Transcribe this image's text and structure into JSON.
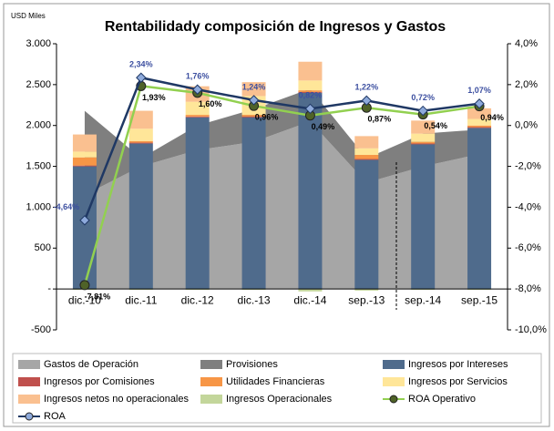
{
  "chart_data": {
    "type": "combo",
    "title": "Rentabilidady composición de Ingresos y Gastos",
    "y_label": "USD Miles",
    "categories": [
      "dic.-10",
      "dic.-11",
      "dic.-12",
      "dic.-13",
      "dic.-14",
      "sep.-13",
      "sep.-14",
      "sep.-15"
    ],
    "ylim": [
      -500,
      3000
    ],
    "yticks": [
      {
        "value": 3000,
        "label": "3.000"
      },
      {
        "value": 2500,
        "label": "2.500"
      },
      {
        "value": 2000,
        "label": "2.000"
      },
      {
        "value": 1500,
        "label": "1.500"
      },
      {
        "value": 1000,
        "label": "1.000"
      },
      500,
      {
        "value": 0,
        "label": "-"
      },
      -500
    ],
    "y2lim": [
      -10,
      4
    ],
    "y2ticks": [
      {
        "value": 4,
        "label": "4,0%"
      },
      {
        "value": 2,
        "label": "2,0%"
      },
      {
        "value": 0,
        "label": "0,0%"
      },
      {
        "value": -2,
        "label": "-2,0%"
      },
      {
        "value": -4,
        "label": "-4,0%"
      },
      {
        "value": -6,
        "label": "-6,0%"
      },
      {
        "value": -8,
        "label": "-8,0%"
      },
      {
        "value": -10,
        "label": "-10,0%"
      }
    ],
    "series": [
      {
        "name": "Gastos de Operación",
        "type": "area",
        "color": "#a6a6a6",
        "values": [
          1150,
          1500,
          1700,
          1800,
          2050,
          1300,
          1500,
          1650
        ]
      },
      {
        "name": "Provisiones",
        "type": "area",
        "color": "#7f7f7f",
        "values": [
          1030,
          100,
          300,
          400,
          400,
          300,
          400,
          300
        ]
      },
      {
        "name": "Ingresos por Intereses",
        "type": "bar",
        "color": "#4f6b8c",
        "values": [
          1500,
          1780,
          2100,
          2100,
          2400,
          1580,
          1770,
          1970
        ]
      },
      {
        "name": "Ingresos por Comisiones",
        "type": "bar",
        "color": "#c0504d",
        "values": [
          10,
          10,
          10,
          10,
          10,
          10,
          10,
          10
        ]
      },
      {
        "name": "Utilidades Financieras",
        "type": "bar",
        "color": "#f79646",
        "values": [
          100,
          20,
          20,
          20,
          20,
          50,
          20,
          20
        ]
      },
      {
        "name": "Ingresos por Servicios",
        "type": "bar",
        "color": "#ffe699",
        "values": [
          70,
          150,
          160,
          230,
          120,
          80,
          100,
          80
        ]
      },
      {
        "name": "Ingresos netos no operacionales",
        "type": "bar",
        "color": "#fac090",
        "values": [
          210,
          220,
          190,
          170,
          230,
          150,
          160,
          130
        ]
      },
      {
        "name": "Ingresos Operacionales",
        "type": "bar",
        "color": "#c3d69b",
        "values": [
          -10,
          -10,
          -10,
          -10,
          -30,
          -20,
          -10,
          -10
        ]
      },
      {
        "name": "ROA Operativo",
        "type": "line",
        "axis": "y2",
        "color": "#92d050",
        "marker": "#4f6228",
        "values": [
          -7.81,
          1.93,
          1.6,
          0.96,
          0.49,
          0.87,
          0.54,
          0.94
        ],
        "value_labels": [
          "-7,81%",
          "1,93%",
          "1,60%",
          "0,96%",
          "0,49%",
          "0,87%",
          "0,54%",
          "0,94%"
        ]
      },
      {
        "name": "ROA",
        "type": "line",
        "axis": "y2",
        "color": "#1f3864",
        "marker": "#8eaadb",
        "values": [
          -4.64,
          2.34,
          1.76,
          1.24,
          0.82,
          1.22,
          0.72,
          1.07
        ],
        "value_labels": [
          "-4,64%",
          "2,34%",
          "1,76%",
          "1,24%",
          "0,82%",
          "1,22%",
          "0,72%",
          "1,07%"
        ]
      }
    ]
  }
}
